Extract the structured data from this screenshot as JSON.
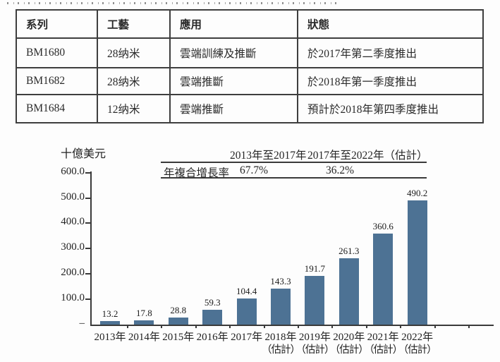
{
  "table": {
    "headers": [
      "系列",
      "工藝",
      "應用",
      "狀態"
    ],
    "rows": [
      [
        "BM1680",
        "28纳米",
        "雲端訓練及推斷",
        "於2017年第二季度推出"
      ],
      [
        "BM1682",
        "28纳米",
        "雲端推斷",
        "於2018年第一季度推出"
      ],
      [
        "BM1684",
        "12纳米",
        "雲端推斷",
        "預計於2018年第四季度推出"
      ]
    ]
  },
  "chart_data": {
    "type": "bar",
    "title": "",
    "ylabel": "十億美元",
    "xlabel": "",
    "ylim": [
      0,
      600
    ],
    "y_tick_interval": 100,
    "bar_color": "#4d7294",
    "grid": false,
    "legend": "none",
    "categories": [
      {
        "year": "2013年",
        "note": ""
      },
      {
        "year": "2014年",
        "note": ""
      },
      {
        "year": "2015年",
        "note": ""
      },
      {
        "year": "2016年",
        "note": ""
      },
      {
        "year": "2017年",
        "note": ""
      },
      {
        "year": "2018年",
        "note": "（估計）"
      },
      {
        "year": "2019年",
        "note": "（估計）"
      },
      {
        "year": "2020年",
        "note": "（估計）"
      },
      {
        "year": "2021年",
        "note": "（估計）"
      },
      {
        "year": "2022年",
        "note": "（估計）"
      }
    ],
    "values": [
      13.2,
      17.8,
      28.8,
      59.3,
      104.4,
      143.3,
      191.7,
      261.3,
      360.6,
      490.2
    ],
    "y_axis_ticks": [
      {
        "label": "600.0",
        "value": 600
      },
      {
        "label": "500.0",
        "value": 500
      },
      {
        "label": "400.0",
        "value": 400
      },
      {
        "label": "300.0",
        "value": 300
      },
      {
        "label": "200.0",
        "value": 200
      },
      {
        "label": "100.0",
        "value": 100
      },
      {
        "label": "–",
        "value": 0
      }
    ],
    "cagr_table": {
      "period1": "2013年至2017年",
      "period2": "2017年至2022年（估計）",
      "row_label": "年複合增長率",
      "value1": "67.7%",
      "value2": "36.2%"
    }
  }
}
